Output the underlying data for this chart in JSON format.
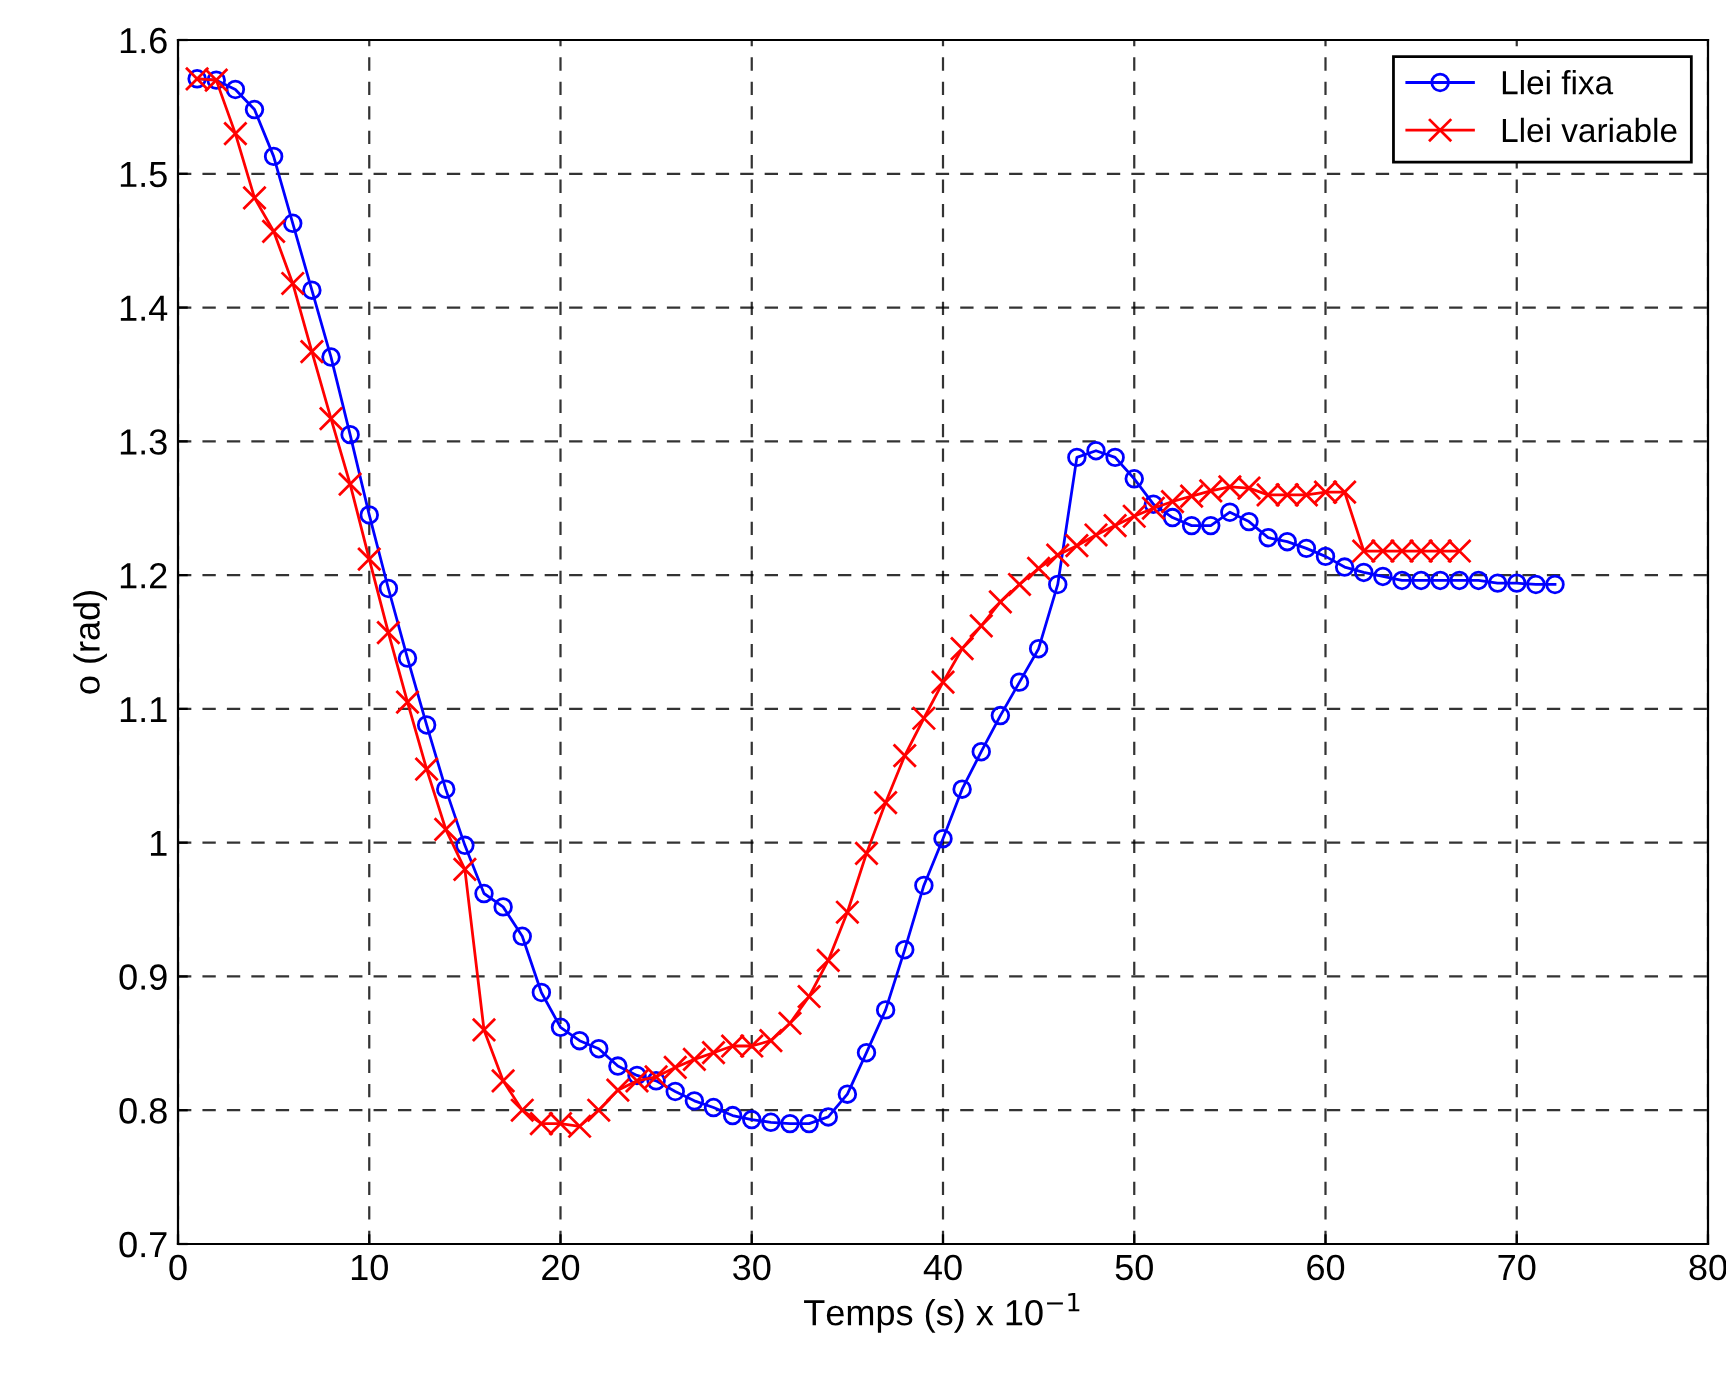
{
  "chart_data": {
    "type": "line",
    "xlabel": "Temps (s) x 10$^{−1}$",
    "ylabel": "o (rad)",
    "xlim": [
      0,
      80
    ],
    "xticks": [
      0,
      10,
      20,
      30,
      40,
      50,
      60,
      70,
      80
    ],
    "ylim": [
      0.7,
      1.6
    ],
    "yticks": [
      0.7,
      0.8,
      0.9,
      1,
      1.1,
      1.2,
      1.3,
      1.4,
      1.5,
      1.6
    ],
    "grid": true,
    "legend": "top right",
    "line_style": "solid",
    "series": [
      {
        "name": "Llei fixa",
        "color": "#0000ff",
        "marker": "circle",
        "x": [
          1,
          2,
          3,
          4,
          5,
          6,
          7,
          8,
          9,
          10,
          11,
          12,
          13,
          14,
          15,
          16,
          17,
          18,
          19,
          20,
          21,
          22,
          23,
          24,
          25,
          26,
          27,
          28,
          29,
          30,
          31,
          32,
          33,
          34,
          35,
          36,
          37,
          38,
          39,
          40,
          41,
          42,
          43,
          44,
          45,
          46,
          47,
          48,
          49,
          50,
          51,
          52,
          53,
          54,
          55,
          56,
          57,
          58,
          59,
          60,
          61,
          62,
          63,
          64,
          65,
          66,
          67,
          68,
          69,
          70,
          71,
          72
        ],
        "values": [
          1.571,
          1.57,
          1.563,
          1.548,
          1.513,
          1.463,
          1.413,
          1.363,
          1.305,
          1.245,
          1.19,
          1.138,
          1.088,
          1.04,
          0.998,
          0.962,
          0.952,
          0.93,
          0.888,
          0.862,
          0.852,
          0.846,
          0.833,
          0.826,
          0.822,
          0.814,
          0.807,
          0.802,
          0.796,
          0.793,
          0.791,
          0.79,
          0.79,
          0.795,
          0.812,
          0.843,
          0.875,
          0.92,
          0.968,
          1.003,
          1.04,
          1.068,
          1.095,
          1.12,
          1.145,
          1.193,
          1.288,
          1.293,
          1.288,
          1.272,
          1.253,
          1.243,
          1.237,
          1.237,
          1.247,
          1.24,
          1.228,
          1.225,
          1.22,
          1.214,
          1.206,
          1.202,
          1.199,
          1.196,
          1.196,
          1.196,
          1.196,
          1.196,
          1.194,
          1.194,
          1.193,
          1.193
        ]
      },
      {
        "name": "Llei variable",
        "color": "#ff0000",
        "marker": "cross",
        "x": [
          1,
          2,
          3,
          4,
          5,
          6,
          7,
          8,
          9,
          10,
          11,
          12,
          13,
          14,
          15,
          16,
          17,
          18,
          19,
          20,
          21,
          22,
          23,
          24,
          25,
          26,
          27,
          28,
          29,
          30,
          31,
          32,
          33,
          34,
          35,
          36,
          37,
          38,
          39,
          40,
          41,
          42,
          43,
          44,
          45,
          46,
          47,
          48,
          49,
          50,
          51,
          52,
          53,
          54,
          55,
          56,
          57,
          58,
          59,
          60,
          61,
          62,
          63,
          64,
          65,
          66,
          67
        ],
        "values": [
          1.571,
          1.57,
          1.53,
          1.482,
          1.457,
          1.418,
          1.367,
          1.317,
          1.268,
          1.212,
          1.157,
          1.105,
          1.055,
          1.01,
          0.98,
          0.86,
          0.822,
          0.8,
          0.79,
          0.79,
          0.788,
          0.8,
          0.815,
          0.822,
          0.825,
          0.832,
          0.838,
          0.843,
          0.848,
          0.848,
          0.852,
          0.865,
          0.885,
          0.912,
          0.948,
          0.992,
          1.03,
          1.065,
          1.093,
          1.12,
          1.145,
          1.162,
          1.18,
          1.193,
          1.205,
          1.215,
          1.222,
          1.23,
          1.237,
          1.244,
          1.25,
          1.255,
          1.259,
          1.263,
          1.266,
          1.265,
          1.26,
          1.26,
          1.26,
          1.262,
          1.262,
          1.218,
          1.218,
          1.218,
          1.218,
          1.218,
          1.218
        ]
      }
    ]
  }
}
